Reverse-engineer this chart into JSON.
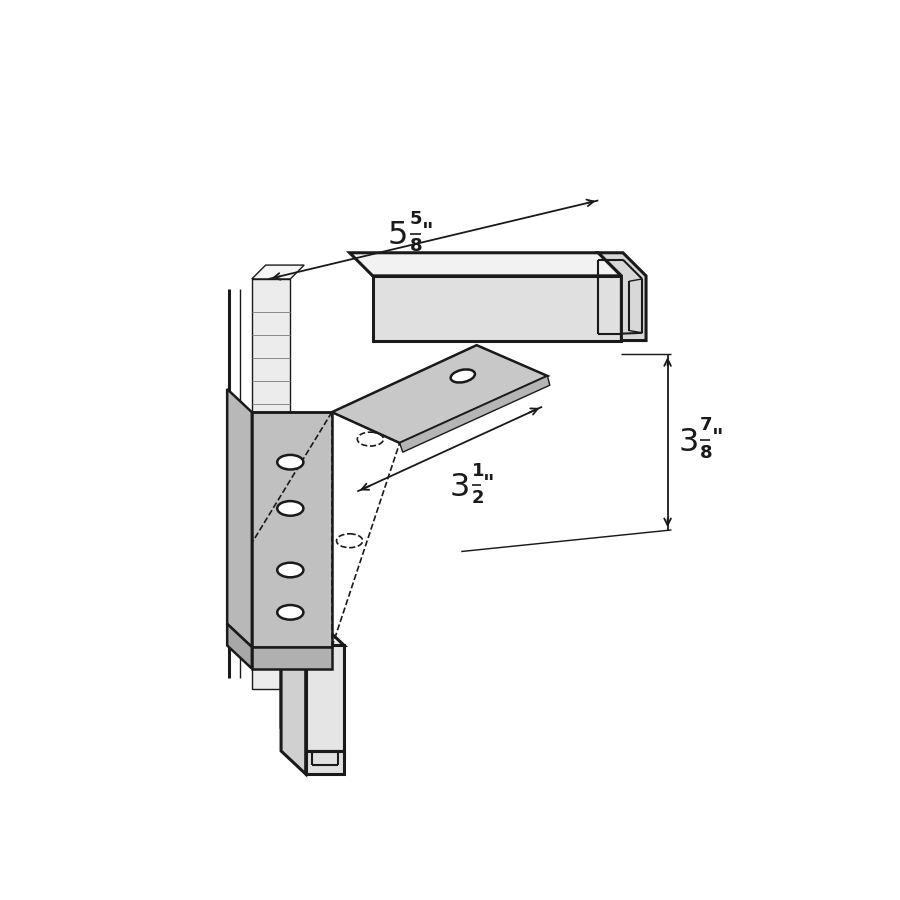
{
  "bg_color": "#ffffff",
  "lc": "#1a1a1a",
  "gray_light": "#d4d4d4",
  "gray_mid": "#c0c0c0",
  "gray_dark": "#a8a8a8",
  "gray_face": "#b8b8b8",
  "figsize": [
    9,
    9
  ],
  "dpi": 100,
  "lw_main": 1.8,
  "lw_thick": 2.2,
  "lw_thin": 1.0,
  "lw_dim": 1.3
}
